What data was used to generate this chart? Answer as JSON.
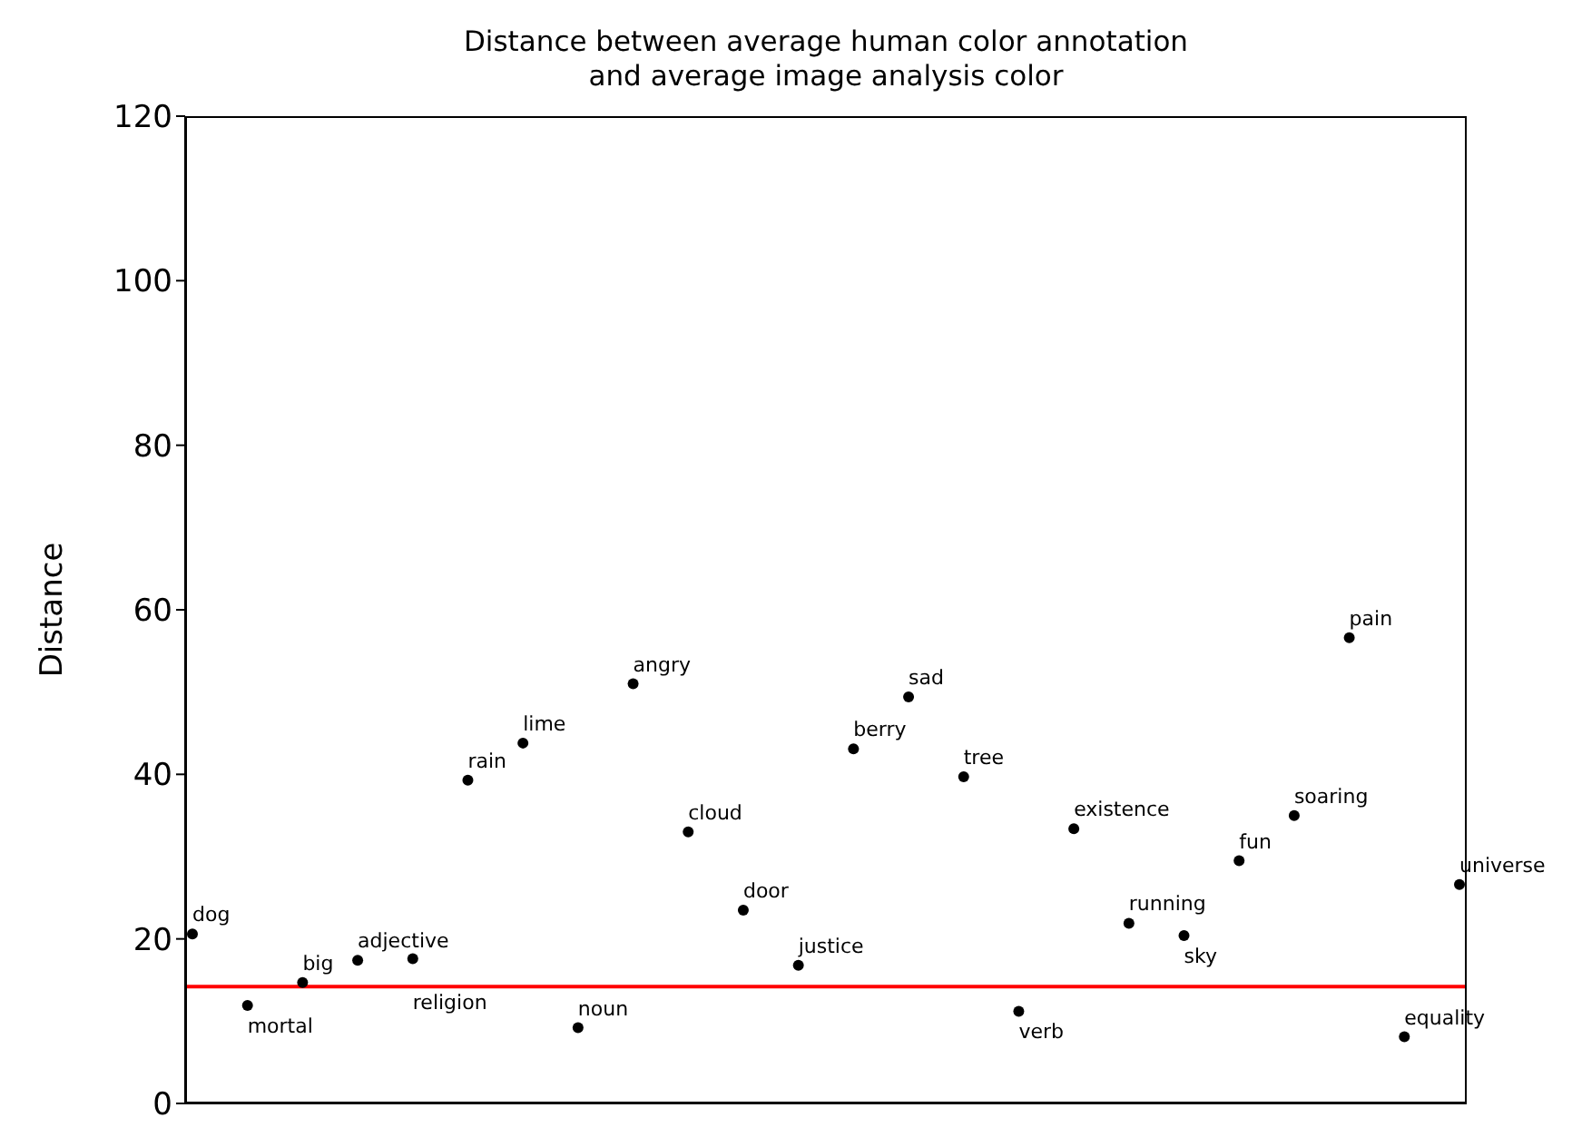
{
  "chart_data": {
    "type": "scatter",
    "title": "Distance between average human color annotation\nand average image analysis color",
    "ylabel": "Distance",
    "categories": [
      null,
      null,
      null,
      null,
      null,
      null,
      null,
      null,
      null,
      null,
      null,
      null,
      null,
      null,
      null,
      null,
      null,
      null,
      null,
      null,
      null,
      null,
      null,
      null
    ],
    "values": [
      20.6,
      11.9,
      14.7,
      17.4,
      17.6,
      39.3,
      43.8,
      9.2,
      51.0,
      33.0,
      23.5,
      16.8,
      43.1,
      49.4,
      39.7,
      11.2,
      33.4,
      21.9,
      20.4,
      29.5,
      35.0,
      56.6,
      8.1,
      26.6
    ],
    "value_labels": [
      "dog",
      "mortal",
      "big",
      "adjective",
      "religion",
      "rain",
      "lime",
      "noun",
      "angry",
      "cloud",
      "door",
      "justice",
      "berry",
      "sad",
      "tree",
      "verb",
      "existence",
      "running",
      "sky",
      "fun",
      "soaring",
      "pain",
      "equality",
      "universe"
    ],
    "color": "#000000",
    "marker": "circle",
    "ylim": [
      0,
      120
    ],
    "yticks": [
      0,
      20,
      40,
      60,
      80,
      100,
      120
    ],
    "ref_lines": [
      {
        "axis": "y",
        "value": 14.2,
        "color": "#ff0000",
        "line_style": "solid"
      }
    ],
    "grid": false,
    "legend": false
  }
}
